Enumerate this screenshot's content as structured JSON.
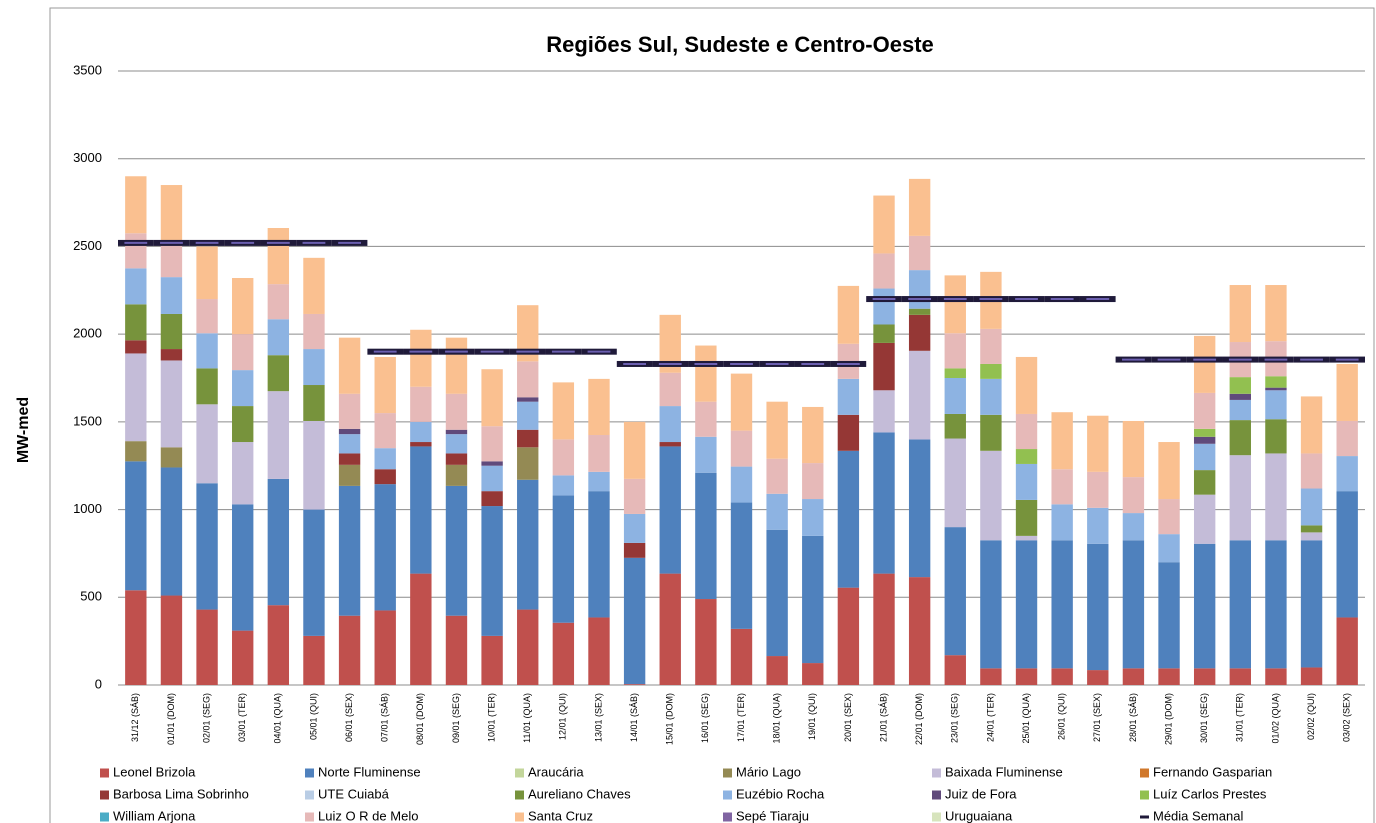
{
  "chart_data": {
    "type": "stacked-bar",
    "title": "Regiões Sul, Sudeste e Centro-Oeste",
    "y_label": "MW-med",
    "ylim": [
      0,
      3500
    ],
    "yticks": [
      0,
      500,
      1000,
      1500,
      2000,
      2500,
      3000,
      3500
    ],
    "grid": true,
    "categories": [
      "31/12 (SÁB)",
      "01/01 (DOM)",
      "02/01 (SEG)",
      "03/01 (TER)",
      "04/01 (QUA)",
      "05/01 (QUI)",
      "06/01 (SEX)",
      "07/01 (SÁB)",
      "08/01 (DOM)",
      "09/01 (SEG)",
      "10/01 (TER)",
      "11/01 (QUA)",
      "12/01 (QUI)",
      "13/01 (SEX)",
      "14/01 (SÁB)",
      "15/01 (DOM)",
      "16/01 (SEG)",
      "17/01 (TER)",
      "18/01 (QUA)",
      "19/01 (QUI)",
      "20/01 (SEX)",
      "21/01 (SÁB)",
      "22/01 (DOM)",
      "23/01 (SEG)",
      "24/01 (TER)",
      "25/01 (QUA)",
      "26/01 (QUI)",
      "27/01 (SEX)",
      "28/01 (SÁB)",
      "29/01 (DOM)",
      "30/01 (SEG)",
      "31/01 (TER)",
      "01/02 (QUA)",
      "02/02 (QUI)",
      "03/02 (SEX)"
    ],
    "series": [
      {
        "name": "Leonel Brizola",
        "color": "#c0504d",
        "values": [
          540,
          510,
          430,
          310,
          455,
          280,
          395,
          425,
          635,
          395,
          280,
          430,
          355,
          385,
          5,
          635,
          490,
          320,
          165,
          125,
          555,
          635,
          615,
          170,
          95,
          95,
          95,
          85,
          95,
          95,
          95,
          95,
          95,
          100,
          385
        ]
      },
      {
        "name": "Norte Fluminense",
        "color": "#4f81bd",
        "values": [
          735,
          730,
          720,
          720,
          720,
          720,
          740,
          720,
          725,
          740,
          740,
          740,
          725,
          720,
          720,
          725,
          720,
          720,
          720,
          725,
          780,
          805,
          785,
          730,
          730,
          730,
          730,
          720,
          730,
          605,
          710,
          730,
          730,
          725,
          720
        ]
      },
      {
        "name": "Araucária",
        "color": "#c3d69b",
        "values": [
          0,
          0,
          0,
          0,
          0,
          0,
          0,
          0,
          0,
          0,
          0,
          0,
          0,
          0,
          0,
          0,
          0,
          0,
          0,
          0,
          0,
          0,
          0,
          0,
          0,
          0,
          0,
          0,
          0,
          0,
          0,
          0,
          0,
          0,
          0
        ]
      },
      {
        "name": "Mário Lago",
        "color": "#948a54",
        "values": [
          115,
          115,
          0,
          0,
          0,
          0,
          120,
          0,
          0,
          120,
          0,
          185,
          0,
          0,
          0,
          0,
          0,
          0,
          0,
          0,
          0,
          0,
          0,
          0,
          0,
          0,
          0,
          0,
          0,
          0,
          0,
          0,
          0,
          0,
          0
        ]
      },
      {
        "name": "Baixada Fluminense",
        "color": "#c4bcd8",
        "values": [
          500,
          495,
          450,
          355,
          500,
          505,
          0,
          0,
          0,
          0,
          0,
          0,
          0,
          0,
          0,
          0,
          0,
          0,
          0,
          0,
          0,
          240,
          505,
          505,
          510,
          25,
          0,
          0,
          0,
          0,
          280,
          485,
          495,
          45,
          0
        ]
      },
      {
        "name": "Fernando Gasparian",
        "color": "#d0782c",
        "values": [
          0,
          0,
          0,
          0,
          0,
          0,
          0,
          0,
          0,
          0,
          0,
          0,
          0,
          0,
          0,
          0,
          0,
          0,
          0,
          0,
          0,
          0,
          0,
          0,
          0,
          0,
          0,
          0,
          0,
          0,
          0,
          0,
          0,
          0,
          0
        ]
      },
      {
        "name": "Barbosa Lima Sobrinho",
        "color": "#953735",
        "values": [
          75,
          65,
          0,
          0,
          0,
          0,
          65,
          85,
          25,
          65,
          85,
          100,
          0,
          0,
          85,
          25,
          0,
          0,
          0,
          0,
          205,
          270,
          205,
          0,
          0,
          0,
          0,
          0,
          0,
          0,
          0,
          0,
          0,
          0,
          0
        ]
      },
      {
        "name": "UTE Cuiabá",
        "color": "#b9cde5",
        "values": [
          0,
          0,
          0,
          0,
          0,
          0,
          0,
          0,
          0,
          0,
          0,
          0,
          0,
          0,
          0,
          0,
          0,
          0,
          0,
          0,
          0,
          0,
          0,
          0,
          0,
          0,
          0,
          0,
          0,
          0,
          0,
          0,
          0,
          0,
          0
        ]
      },
      {
        "name": "Aureliano Chaves",
        "color": "#77933c",
        "values": [
          205,
          200,
          205,
          205,
          205,
          205,
          0,
          0,
          0,
          0,
          0,
          0,
          0,
          0,
          0,
          0,
          0,
          0,
          0,
          0,
          0,
          105,
          35,
          140,
          205,
          205,
          0,
          0,
          0,
          0,
          140,
          200,
          195,
          40,
          0
        ]
      },
      {
        "name": "Euzébio Rocha",
        "color": "#8db3e2",
        "values": [
          205,
          210,
          200,
          205,
          205,
          205,
          110,
          120,
          115,
          110,
          145,
          160,
          115,
          110,
          165,
          205,
          205,
          205,
          205,
          210,
          205,
          205,
          220,
          205,
          205,
          205,
          205,
          205,
          155,
          160,
          150,
          115,
          165,
          210,
          200
        ]
      },
      {
        "name": "Juiz de Fora",
        "color": "#604a7b",
        "values": [
          0,
          0,
          0,
          0,
          0,
          0,
          30,
          0,
          0,
          25,
          25,
          25,
          0,
          0,
          0,
          0,
          0,
          0,
          0,
          0,
          0,
          0,
          0,
          0,
          0,
          0,
          0,
          0,
          0,
          0,
          40,
          35,
          15,
          0,
          0
        ]
      },
      {
        "name": "Luíz Carlos Prestes",
        "color": "#92c050",
        "values": [
          0,
          0,
          0,
          0,
          0,
          0,
          0,
          0,
          0,
          0,
          0,
          0,
          0,
          0,
          0,
          0,
          0,
          0,
          0,
          0,
          0,
          0,
          0,
          55,
          85,
          85,
          0,
          0,
          0,
          0,
          45,
          95,
          65,
          0,
          0
        ]
      },
      {
        "name": "William Arjona",
        "color": "#4bacc6",
        "values": [
          0,
          0,
          0,
          0,
          0,
          0,
          0,
          0,
          0,
          0,
          0,
          0,
          0,
          0,
          0,
          0,
          0,
          0,
          0,
          0,
          0,
          0,
          0,
          0,
          0,
          0,
          0,
          0,
          0,
          0,
          0,
          0,
          0,
          0,
          0
        ]
      },
      {
        "name": "Luiz O R de Melo",
        "color": "#e6b9b8",
        "values": [
          200,
          185,
          195,
          205,
          200,
          200,
          200,
          200,
          200,
          205,
          200,
          205,
          205,
          210,
          200,
          190,
          200,
          205,
          200,
          205,
          200,
          200,
          195,
          200,
          200,
          200,
          200,
          205,
          205,
          200,
          205,
          200,
          200,
          200,
          200
        ]
      },
      {
        "name": "Santa Cruz",
        "color": "#fac090",
        "values": [
          325,
          340,
          300,
          320,
          320,
          320,
          320,
          320,
          325,
          320,
          325,
          320,
          325,
          320,
          325,
          330,
          320,
          325,
          325,
          320,
          330,
          330,
          325,
          330,
          325,
          325,
          325,
          320,
          320,
          325,
          325,
          325,
          320,
          325,
          325
        ]
      },
      {
        "name": "Sepé Tiaraju",
        "color": "#8064a2",
        "values": [
          0,
          0,
          0,
          0,
          0,
          0,
          0,
          0,
          0,
          0,
          0,
          0,
          0,
          0,
          0,
          0,
          0,
          0,
          0,
          0,
          0,
          0,
          0,
          0,
          0,
          0,
          0,
          0,
          0,
          0,
          0,
          0,
          0,
          0,
          0
        ]
      },
      {
        "name": "Uruguaiana",
        "color": "#d7e4bd",
        "values": [
          0,
          0,
          0,
          0,
          0,
          0,
          0,
          0,
          0,
          0,
          0,
          0,
          0,
          0,
          0,
          0,
          0,
          0,
          0,
          0,
          0,
          0,
          0,
          0,
          0,
          0,
          0,
          0,
          0,
          0,
          0,
          0,
          0,
          0,
          0
        ]
      },
      {
        "name": "Média Semanal",
        "color": "#1f1a3a",
        "kind": "dash-marker",
        "values": [
          2520,
          2520,
          2520,
          2520,
          2520,
          2520,
          2520,
          1900,
          1900,
          1900,
          1900,
          1900,
          1900,
          1900,
          1830,
          1830,
          1830,
          1830,
          1830,
          1830,
          1830,
          2200,
          2200,
          2200,
          2200,
          2200,
          2200,
          2200,
          1855,
          1855,
          1855,
          1855,
          1855,
          1855,
          1855
        ]
      }
    ]
  }
}
